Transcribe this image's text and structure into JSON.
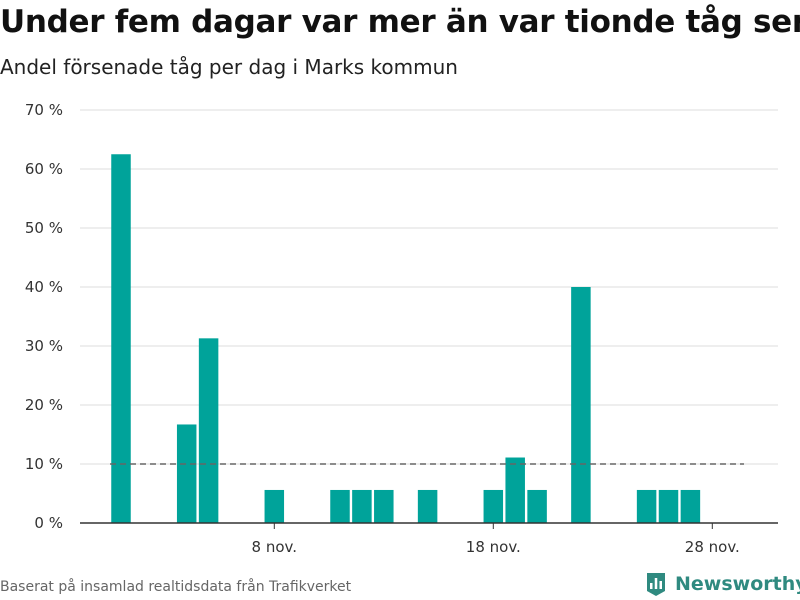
{
  "title": "Under fem dagar var mer än var tionde tåg sent",
  "subtitle": "Andel försenade tåg per dag i Marks kommun",
  "source": "Baserat på insamlad realtidsdata från Trafikverket",
  "brand": "Newsworthy",
  "colors": {
    "bar": "#00a39a",
    "reference_line": "#666666",
    "grid": "#dddddd",
    "axis": "#333333",
    "brand": "#2f8a80"
  },
  "chart_data": {
    "type": "bar",
    "x": [
      1,
      2,
      3,
      4,
      5,
      6,
      7,
      8,
      9,
      10,
      11,
      12,
      13,
      14,
      15,
      16,
      17,
      18,
      19,
      20,
      21,
      22,
      23,
      24,
      25,
      26,
      27,
      28,
      29,
      30
    ],
    "values": [
      62.5,
      0,
      0,
      16.7,
      31.3,
      0,
      0,
      5.6,
      0,
      0,
      5.6,
      5.6,
      5.6,
      0,
      5.6,
      0,
      0,
      5.6,
      11.1,
      5.6,
      0,
      40,
      0,
      0,
      5.6,
      5.6,
      5.6,
      0,
      0,
      0
    ],
    "x_ticks": [
      {
        "x": 8,
        "label": "8 nov."
      },
      {
        "x": 18,
        "label": "18 nov."
      },
      {
        "x": 28,
        "label": "28 nov."
      }
    ],
    "y_ticks": [
      {
        "value": 0,
        "label": "0 %"
      },
      {
        "value": 10,
        "label": "10 %"
      },
      {
        "value": 20,
        "label": "20 %"
      },
      {
        "value": 30,
        "label": "30 %"
      },
      {
        "value": 40,
        "label": "40 %"
      },
      {
        "value": 50,
        "label": "50 %"
      },
      {
        "value": 60,
        "label": "60 %"
      },
      {
        "value": 70,
        "label": "70 %"
      }
    ],
    "ylim": [
      0,
      70
    ],
    "xlim": [
      1,
      30
    ],
    "reference_line": {
      "value": 10,
      "style": "dashed"
    },
    "grid": true,
    "xlabel": "",
    "ylabel": ""
  }
}
